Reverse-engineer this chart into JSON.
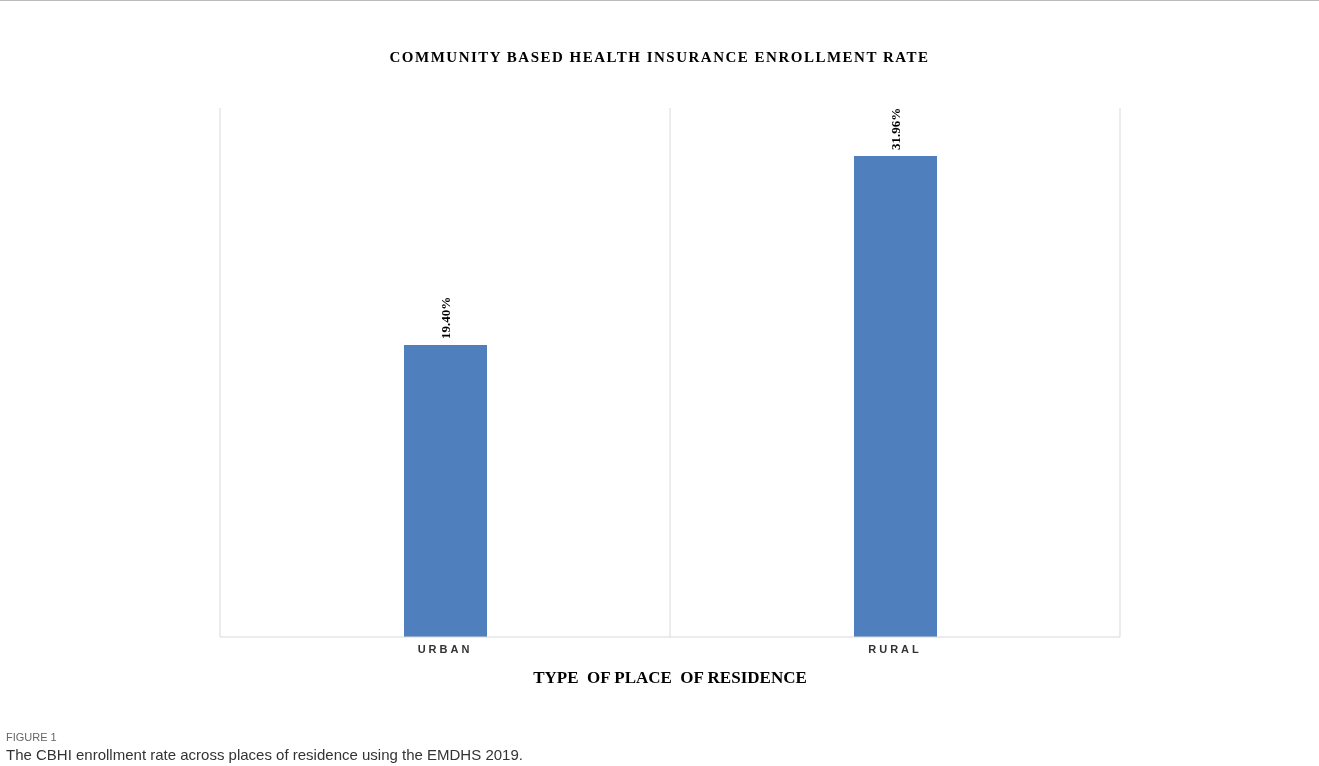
{
  "chart_data": {
    "type": "bar",
    "title": "COMMUNITY BASED HEALTH INSURANCE ENROLLMENT RATE",
    "xlabel": "TYPE  OF PLACE  OF RESIDENCE",
    "categories": [
      "URBAN",
      "RURAL"
    ],
    "values": [
      19.4,
      31.96
    ],
    "value_labels": [
      "19.40%",
      "31.96%"
    ],
    "color": "#4f7fbd",
    "grid": "x",
    "annotations": [
      "FIGURE 1",
      "The CBHI enrollment rate across places of residence using the EMDHS 2019."
    ]
  }
}
